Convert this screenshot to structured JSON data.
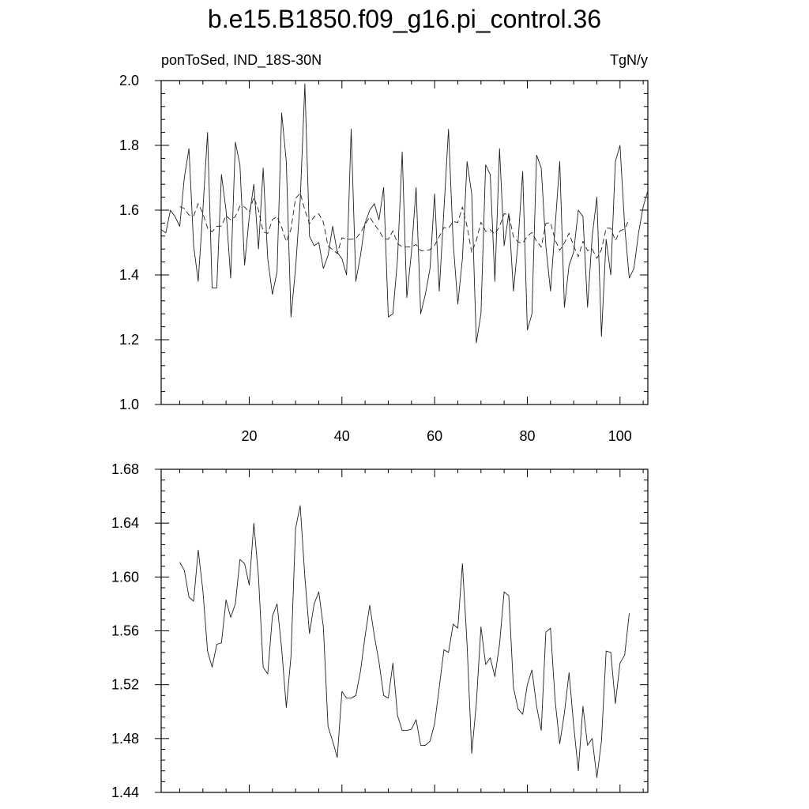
{
  "title": "b.e15.B1850.f09_g16.pi_control.36",
  "left_string": "ponToSed, IND_18S-30N",
  "right_string": "TgN/y",
  "chart_data": [
    {
      "type": "line",
      "xlim": [
        1,
        106
      ],
      "ylim": [
        1.0,
        2.0
      ],
      "xticks": [
        20,
        40,
        60,
        80,
        100
      ],
      "yticks": [
        1.0,
        1.2,
        1.4,
        1.6,
        1.8,
        2.0
      ],
      "ytick_labels": [
        "1.0",
        "1.2",
        "1.4",
        "1.6",
        "1.8",
        "2.0"
      ],
      "series": [
        {
          "style": "solid",
          "x": [
            1,
            2,
            3,
            4,
            5,
            6,
            7,
            8,
            9,
            10,
            11,
            12,
            13,
            14,
            15,
            16,
            17,
            18,
            19,
            20,
            21,
            22,
            23,
            24,
            25,
            26,
            27,
            28,
            29,
            30,
            31,
            32,
            33,
            34,
            35,
            36,
            37,
            38,
            39,
            40,
            41,
            42,
            43,
            44,
            45,
            46,
            47,
            48,
            49,
            50,
            51,
            52,
            53,
            54,
            55,
            56,
            57,
            58,
            59,
            60,
            61,
            62,
            63,
            64,
            65,
            66,
            67,
            68,
            69,
            70,
            71,
            72,
            73,
            74,
            75,
            76,
            77,
            78,
            79,
            80,
            81,
            82,
            83,
            84,
            85,
            86,
            87,
            88,
            89,
            90,
            91,
            92,
            93,
            94,
            95,
            96,
            97,
            98,
            99,
            100,
            101,
            102,
            103,
            104,
            105,
            106
          ],
          "values": [
            1.54,
            1.53,
            1.6,
            1.58,
            1.55,
            1.7,
            1.79,
            1.49,
            1.38,
            1.6,
            1.84,
            1.36,
            1.36,
            1.71,
            1.6,
            1.39,
            1.81,
            1.74,
            1.43,
            1.58,
            1.68,
            1.48,
            1.73,
            1.45,
            1.34,
            1.41,
            1.9,
            1.75,
            1.27,
            1.42,
            1.63,
            1.99,
            1.52,
            1.49,
            1.5,
            1.42,
            1.46,
            1.55,
            1.47,
            1.45,
            1.4,
            1.85,
            1.38,
            1.46,
            1.56,
            1.6,
            1.62,
            1.57,
            1.67,
            1.27,
            1.28,
            1.45,
            1.78,
            1.33,
            1.47,
            1.67,
            1.28,
            1.34,
            1.42,
            1.65,
            1.35,
            1.6,
            1.85,
            1.5,
            1.31,
            1.45,
            1.75,
            1.65,
            1.19,
            1.28,
            1.74,
            1.71,
            1.38,
            1.79,
            1.49,
            1.59,
            1.35,
            1.5,
            1.72,
            1.23,
            1.28,
            1.77,
            1.73,
            1.49,
            1.35,
            1.55,
            1.75,
            1.3,
            1.43,
            1.47,
            1.6,
            1.58,
            1.3,
            1.52,
            1.64,
            1.21,
            1.51,
            1.4,
            1.75,
            1.8,
            1.55,
            1.39,
            1.42,
            1.53,
            1.61,
            1.66
          ]
        },
        {
          "style": "dashed",
          "x": [
            5,
            6,
            7,
            8,
            9,
            10,
            11,
            12,
            13,
            14,
            15,
            16,
            17,
            18,
            19,
            20,
            21,
            22,
            23,
            24,
            25,
            26,
            27,
            28,
            29,
            30,
            31,
            32,
            33,
            34,
            35,
            36,
            37,
            38,
            39,
            40,
            41,
            42,
            43,
            44,
            45,
            46,
            47,
            48,
            49,
            50,
            51,
            52,
            53,
            54,
            55,
            56,
            57,
            58,
            59,
            60,
            61,
            62,
            63,
            64,
            65,
            66,
            67,
            68,
            69,
            70,
            71,
            72,
            73,
            74,
            75,
            76,
            77,
            78,
            79,
            80,
            81,
            82,
            83,
            84,
            85,
            86,
            87,
            88,
            89,
            90,
            91,
            92,
            93,
            94,
            95,
            96,
            97,
            98,
            99,
            100,
            101,
            102
          ],
          "values": [
            1.611,
            1.605,
            1.585,
            1.582,
            1.62,
            1.59,
            1.545,
            1.533,
            1.55,
            1.551,
            1.583,
            1.57,
            1.58,
            1.613,
            1.61,
            1.594,
            1.64,
            1.6,
            1.533,
            1.528,
            1.571,
            1.58,
            1.547,
            1.503,
            1.541,
            1.636,
            1.653,
            1.6,
            1.558,
            1.58,
            1.589,
            1.563,
            1.489,
            1.478,
            1.466,
            1.515,
            1.51,
            1.51,
            1.512,
            1.53,
            1.556,
            1.579,
            1.556,
            1.537,
            1.512,
            1.51,
            1.536,
            1.497,
            1.486,
            1.486,
            1.487,
            1.494,
            1.475,
            1.475,
            1.478,
            1.491,
            1.518,
            1.546,
            1.544,
            1.565,
            1.562,
            1.61,
            1.55,
            1.469,
            1.506,
            1.563,
            1.535,
            1.54,
            1.526,
            1.55,
            1.589,
            1.586,
            1.518,
            1.502,
            1.498,
            1.52,
            1.531,
            1.504,
            1.486,
            1.559,
            1.562,
            1.508,
            1.476,
            1.499,
            1.529,
            1.49,
            1.456,
            1.504,
            1.475,
            1.48,
            1.451,
            1.478,
            1.545,
            1.544,
            1.506,
            1.536,
            1.542,
            1.573
          ]
        }
      ]
    },
    {
      "type": "line",
      "xlim": [
        1,
        106
      ],
      "ylim": [
        1.44,
        1.68
      ],
      "xticks": [
        20,
        40,
        60,
        80,
        100
      ],
      "yticks": [
        1.44,
        1.48,
        1.52,
        1.56,
        1.6,
        1.64,
        1.68
      ],
      "ytick_labels": [
        "1.44",
        "1.48",
        "1.52",
        "1.56",
        "1.60",
        "1.64",
        "1.68"
      ],
      "series": [
        {
          "style": "solid",
          "x": [
            5,
            6,
            7,
            8,
            9,
            10,
            11,
            12,
            13,
            14,
            15,
            16,
            17,
            18,
            19,
            20,
            21,
            22,
            23,
            24,
            25,
            26,
            27,
            28,
            29,
            30,
            31,
            32,
            33,
            34,
            35,
            36,
            37,
            38,
            39,
            40,
            41,
            42,
            43,
            44,
            45,
            46,
            47,
            48,
            49,
            50,
            51,
            52,
            53,
            54,
            55,
            56,
            57,
            58,
            59,
            60,
            61,
            62,
            63,
            64,
            65,
            66,
            67,
            68,
            69,
            70,
            71,
            72,
            73,
            74,
            75,
            76,
            77,
            78,
            79,
            80,
            81,
            82,
            83,
            84,
            85,
            86,
            87,
            88,
            89,
            90,
            91,
            92,
            93,
            94,
            95,
            96,
            97,
            98,
            99,
            100,
            101,
            102
          ],
          "values": [
            1.611,
            1.605,
            1.585,
            1.582,
            1.62,
            1.59,
            1.545,
            1.533,
            1.55,
            1.551,
            1.583,
            1.57,
            1.58,
            1.613,
            1.61,
            1.594,
            1.64,
            1.6,
            1.533,
            1.528,
            1.571,
            1.58,
            1.547,
            1.503,
            1.541,
            1.636,
            1.653,
            1.6,
            1.558,
            1.58,
            1.589,
            1.563,
            1.489,
            1.478,
            1.466,
            1.515,
            1.51,
            1.51,
            1.512,
            1.53,
            1.556,
            1.579,
            1.556,
            1.537,
            1.512,
            1.51,
            1.536,
            1.497,
            1.486,
            1.486,
            1.487,
            1.494,
            1.475,
            1.475,
            1.478,
            1.491,
            1.518,
            1.546,
            1.544,
            1.565,
            1.562,
            1.61,
            1.55,
            1.469,
            1.506,
            1.563,
            1.535,
            1.54,
            1.526,
            1.55,
            1.589,
            1.586,
            1.518,
            1.502,
            1.498,
            1.52,
            1.531,
            1.504,
            1.486,
            1.559,
            1.562,
            1.508,
            1.476,
            1.499,
            1.529,
            1.49,
            1.456,
            1.504,
            1.475,
            1.48,
            1.451,
            1.478,
            1.545,
            1.544,
            1.506,
            1.536,
            1.542,
            1.573
          ]
        }
      ]
    }
  ]
}
